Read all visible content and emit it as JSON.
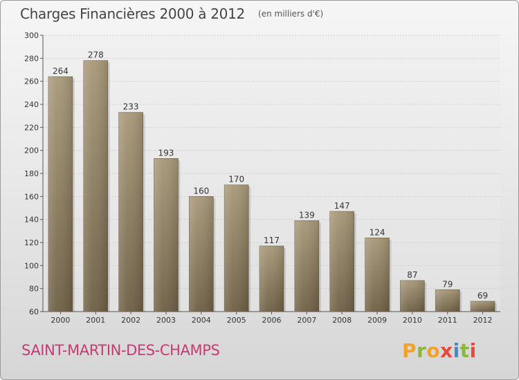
{
  "header": {
    "title": "Charges Financières 2000 à 2012",
    "subtitle": "(en milliers d'€)"
  },
  "footer": {
    "commune": "SAINT-MARTIN-DES-CHAMPS",
    "brand": "Proxiti",
    "brand_colors": [
      "#f2a12d",
      "#8ab83c",
      "#3f8ccc",
      "#e8493a"
    ]
  },
  "chart_data": {
    "type": "bar",
    "title": "Charges Financières 2000 à 2012",
    "subtitle": "(en milliers d'€)",
    "categories": [
      "2000",
      "2001",
      "2002",
      "2003",
      "2004",
      "2005",
      "2006",
      "2007",
      "2008",
      "2009",
      "2010",
      "2011",
      "2012"
    ],
    "values": [
      264,
      278,
      233,
      193,
      160,
      170,
      117,
      139,
      147,
      124,
      87,
      79,
      69
    ],
    "ylim": [
      60,
      300
    ],
    "yticks": [
      60,
      80,
      100,
      120,
      140,
      160,
      180,
      200,
      220,
      240,
      260,
      280,
      300
    ],
    "grid": true,
    "bar_color_top": "#a89878",
    "bar_color_bottom": "#6e5f45"
  }
}
